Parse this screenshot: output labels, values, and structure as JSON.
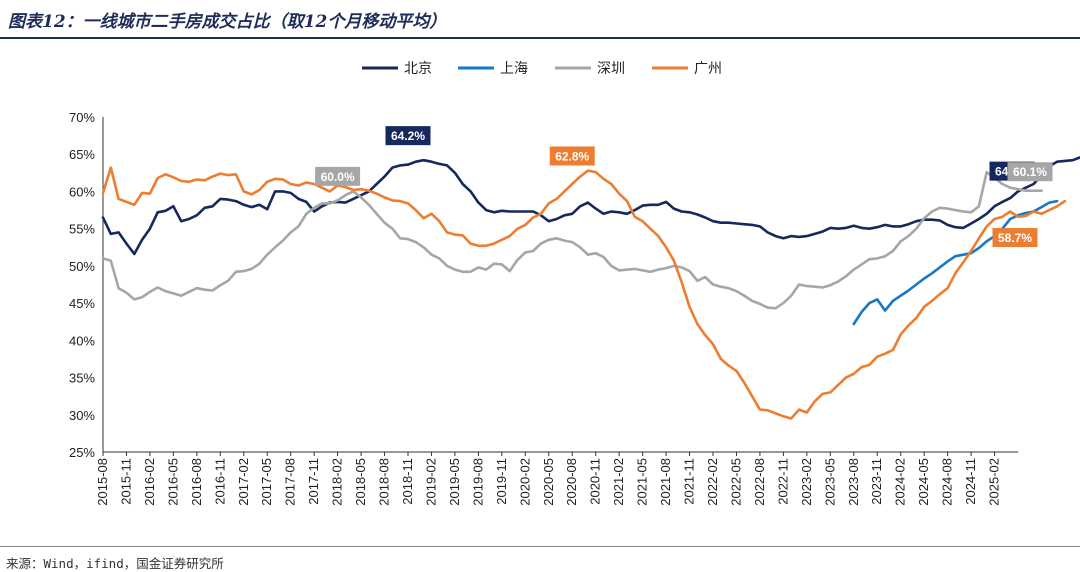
{
  "header": {
    "title": "图表12：一线城市二手房成交占比（取12个月移动平均）"
  },
  "footer": {
    "source": "来源：Wind，ifind，国金证券研究所"
  },
  "chart_data": {
    "type": "line",
    "title": "图表12：一线城市二手房成交占比（取12个月移动平均）",
    "xlabel": "",
    "ylabel": "",
    "ylim": [
      25,
      70
    ],
    "y_ticks": [
      "70%",
      "65%",
      "60%",
      "55%",
      "50%",
      "45%",
      "40%",
      "35%",
      "30%",
      "25%"
    ],
    "grid": false,
    "legend_position": "top-center",
    "x_tick_labels": [
      "2015-08",
      "2015-11",
      "2016-02",
      "2016-05",
      "2016-08",
      "2016-11",
      "2017-02",
      "2017-05",
      "2017-08",
      "2017-11",
      "2018-02",
      "2018-05",
      "2018-08",
      "2018-11",
      "2019-02",
      "2019-05",
      "2019-08",
      "2019-11",
      "2020-02",
      "2020-05",
      "2020-08",
      "2020-11",
      "2021-02",
      "2021-05",
      "2021-08",
      "2021-11",
      "2022-02",
      "2022-05",
      "2022-08",
      "2022-11",
      "2023-02",
      "2023-05",
      "2023-08",
      "2023-11",
      "2024-02",
      "2024-05",
      "2024-08",
      "2024-11",
      "2025-02"
    ],
    "x_start": "2015-08",
    "series": [
      {
        "name": "北京",
        "color": "#16295e",
        "start": "2015-08",
        "values": [
          56.5,
          54.3,
          54.5,
          53,
          51.6,
          53.5,
          55,
          57.2,
          57.4,
          58,
          56,
          56.3,
          56.8,
          57.8,
          58,
          59,
          58.9,
          58.7,
          58.2,
          57.9,
          58.2,
          57.6,
          60,
          60,
          59.8,
          59,
          58.6,
          57.3,
          58,
          58.5,
          58.6,
          58.5,
          59,
          59.5,
          60,
          61,
          62,
          63.2,
          63.5,
          63.6,
          64,
          64.2,
          64,
          63.7,
          63.5,
          62.5,
          61,
          60,
          58.5,
          57.5,
          57.2,
          57.4,
          57.3,
          57.3,
          57.3,
          57.3,
          56.8,
          56,
          56.3,
          56.8,
          57,
          58,
          58.5,
          57.7,
          57,
          57.3,
          57.2,
          57,
          57.5,
          58.1,
          58.2,
          58.2,
          58.6,
          57.7,
          57.3,
          57.2,
          56.9,
          56.5,
          56,
          55.8,
          55.8,
          55.7,
          55.6,
          55.5,
          55.3,
          54.5,
          54,
          53.7,
          54,
          53.9,
          54,
          54.3,
          54.6,
          55.1,
          55,
          55.1,
          55.4,
          55.1,
          55,
          55.2,
          55.5,
          55.3,
          55.3,
          55.6,
          56,
          56.2,
          56.2,
          56.1,
          55.5,
          55.2,
          55.1,
          55.7,
          56.3,
          57,
          58,
          58.6,
          59.1,
          60,
          60.5,
          61,
          62.2,
          63.4,
          64,
          64.1,
          64.2,
          64.6
        ]
      },
      {
        "name": "上海",
        "color": "#1a77c2",
        "start": "2023-08",
        "values": [
          42.2,
          43.8,
          45,
          45.5,
          44,
          45.3,
          46,
          46.7,
          47.5,
          48.3,
          49,
          49.8,
          50.6,
          51.3,
          51.5,
          51.7,
          52.4,
          53.3,
          54,
          55,
          56.3,
          56.8,
          57.1,
          57.3,
          57.9,
          58.5,
          58.7
        ]
      },
      {
        "name": "深圳",
        "color": "#a6a6a6",
        "start": "2015-08",
        "values": [
          51,
          50.7,
          47,
          46.4,
          45.5,
          45.8,
          46.5,
          47.1,
          46.6,
          46.3,
          46,
          46.5,
          47,
          46.8,
          46.7,
          47.4,
          48,
          49.2,
          49.3,
          49.6,
          50.3,
          51.5,
          52.5,
          53.4,
          54.5,
          55.3,
          57,
          57.8,
          58.4,
          58.4,
          58.8,
          59.5,
          60,
          59.2,
          58.2,
          57,
          55.8,
          55,
          53.7,
          53.6,
          53.2,
          52.5,
          51.5,
          51,
          50,
          49.5,
          49.2,
          49.2,
          49.8,
          49.5,
          50.3,
          50.2,
          49.3,
          50.8,
          51.8,
          52,
          53,
          53.5,
          53.7,
          53.4,
          53.2,
          52.5,
          51.5,
          51.7,
          51.2,
          50,
          49.4,
          49.5,
          49.6,
          49.4,
          49.2,
          49.5,
          49.7,
          50,
          49.8,
          49.3,
          48,
          48.5,
          47.5,
          47.2,
          47,
          46.6,
          46,
          45.3,
          44.9,
          44.4,
          44.3,
          45,
          46,
          47.5,
          47.3,
          47.2,
          47.1,
          47.4,
          47.9,
          48.6,
          49.5,
          50.2,
          50.9,
          51,
          51.3,
          52,
          53.3,
          54,
          55,
          56.4,
          57.3,
          57.8,
          57.7,
          57.5,
          57.3,
          57.2,
          58,
          62.6,
          61.8,
          61,
          60.5,
          60.3,
          60.1,
          60.1,
          60.1
        ]
      },
      {
        "name": "广州",
        "color": "#ed7d31",
        "start": "2015-08",
        "values": [
          59.8,
          63.2,
          59,
          58.6,
          58.2,
          59.8,
          59.7,
          61.8,
          62.3,
          61.9,
          61.4,
          61.3,
          61.6,
          61.5,
          62,
          62.4,
          62.2,
          62.3,
          60,
          59.6,
          60.2,
          61.3,
          61.7,
          61.6,
          61,
          60.8,
          61.2,
          61,
          60.5,
          60,
          60.8,
          60.6,
          60.2,
          60.3,
          60.1,
          59.7,
          59.2,
          58.8,
          58.7,
          58.4,
          57.5,
          56.4,
          57,
          56,
          54.5,
          54.2,
          54.1,
          53,
          52.7,
          52.7,
          53,
          53.5,
          54,
          55,
          55.5,
          56.5,
          57,
          58.4,
          59,
          60,
          61,
          62,
          62.8,
          62.6,
          61.7,
          61,
          59.7,
          58.7,
          56.6,
          56,
          55,
          54,
          52.5,
          50.7,
          47.8,
          44.5,
          42.2,
          40.7,
          39.5,
          37.5,
          36.6,
          35.9,
          34.3,
          32.5,
          30.7,
          30.6,
          30.2,
          29.8,
          29.5,
          30.7,
          30.3,
          31.8,
          32.8,
          33,
          34,
          35,
          35.5,
          36.4,
          36.7,
          37.8,
          38.2,
          38.7,
          40.8,
          42,
          43,
          44.5,
          45.3,
          46.2,
          47,
          49,
          50.5,
          52,
          53.7,
          55.3,
          56.3,
          56.6,
          57.3,
          56.6,
          56.7,
          57.3,
          57,
          57.5,
          58,
          58.7
        ]
      }
    ],
    "callouts": [
      {
        "label": "64.2%",
        "series": "北京",
        "date": "2018-11",
        "color": "#16295e"
      },
      {
        "label": "60.0%",
        "series": "深圳",
        "date": "2018-02",
        "color": "#a6a6a6"
      },
      {
        "label": "62.8%",
        "series": "广州",
        "date": "2020-08",
        "color": "#ed7d31"
      },
      {
        "label": "64.6%",
        "series": "北京",
        "date": "2025-04",
        "color": "#16295e"
      },
      {
        "label": "60.1%",
        "series": "深圳",
        "date": "2025-04",
        "color": "#a6a6a6"
      },
      {
        "label": "58.7%",
        "series": "广州",
        "date": "2025-04",
        "color": "#ed7d31"
      }
    ]
  }
}
